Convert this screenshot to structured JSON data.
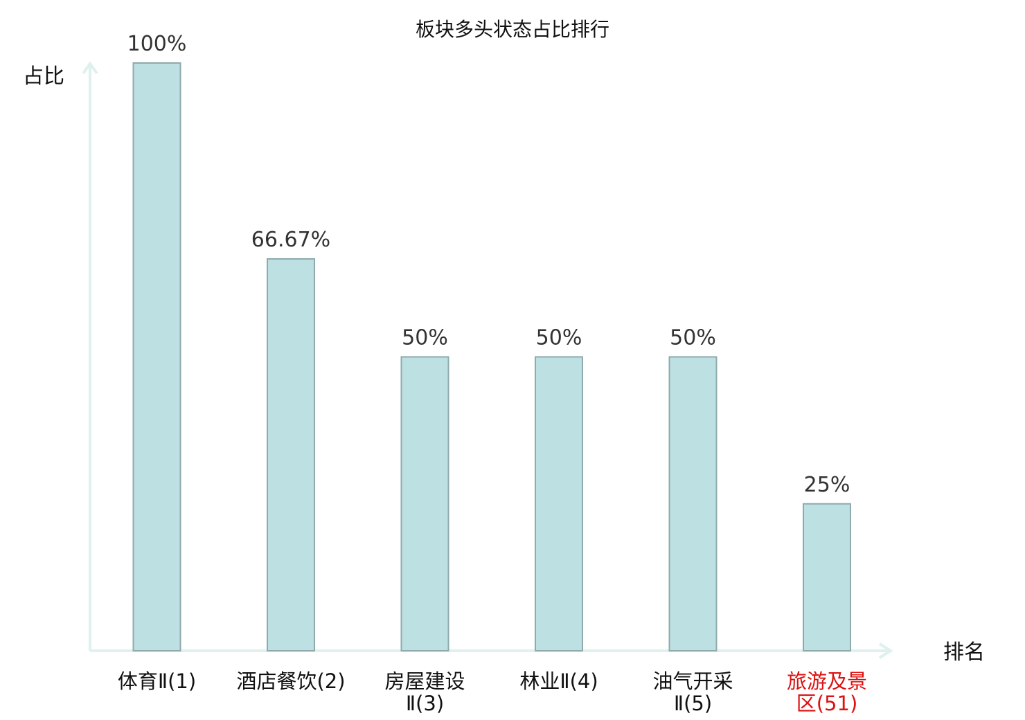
{
  "chart_data": {
    "type": "bar",
    "title": "板块多头状态占比排行",
    "ylabel": "占比",
    "xlabel": "排名",
    "ylim": [
      0,
      100
    ],
    "grid": false,
    "legend": "none",
    "categories": [
      {
        "lines": [
          "体育Ⅱ(1)"
        ],
        "highlight": false
      },
      {
        "lines": [
          "酒店餐饮(2)"
        ],
        "highlight": false
      },
      {
        "lines": [
          "房屋建设",
          "Ⅱ(3)"
        ],
        "highlight": false
      },
      {
        "lines": [
          "林业Ⅱ(4)"
        ],
        "highlight": false
      },
      {
        "lines": [
          "油气开采",
          "Ⅱ(5)"
        ],
        "highlight": false
      },
      {
        "lines": [
          "旅游及景",
          "区(51)"
        ],
        "highlight": true
      }
    ],
    "values": [
      100,
      66.67,
      50,
      50,
      50,
      25
    ],
    "value_labels": [
      "100%",
      "66.67%",
      "50%",
      "50%",
      "50%",
      "25%"
    ],
    "colors": {
      "bar_fill": "#bde0e3",
      "bar_stroke": "#8eaaad",
      "axis": "#def1ee",
      "highlight_label": "#dd1111"
    }
  }
}
